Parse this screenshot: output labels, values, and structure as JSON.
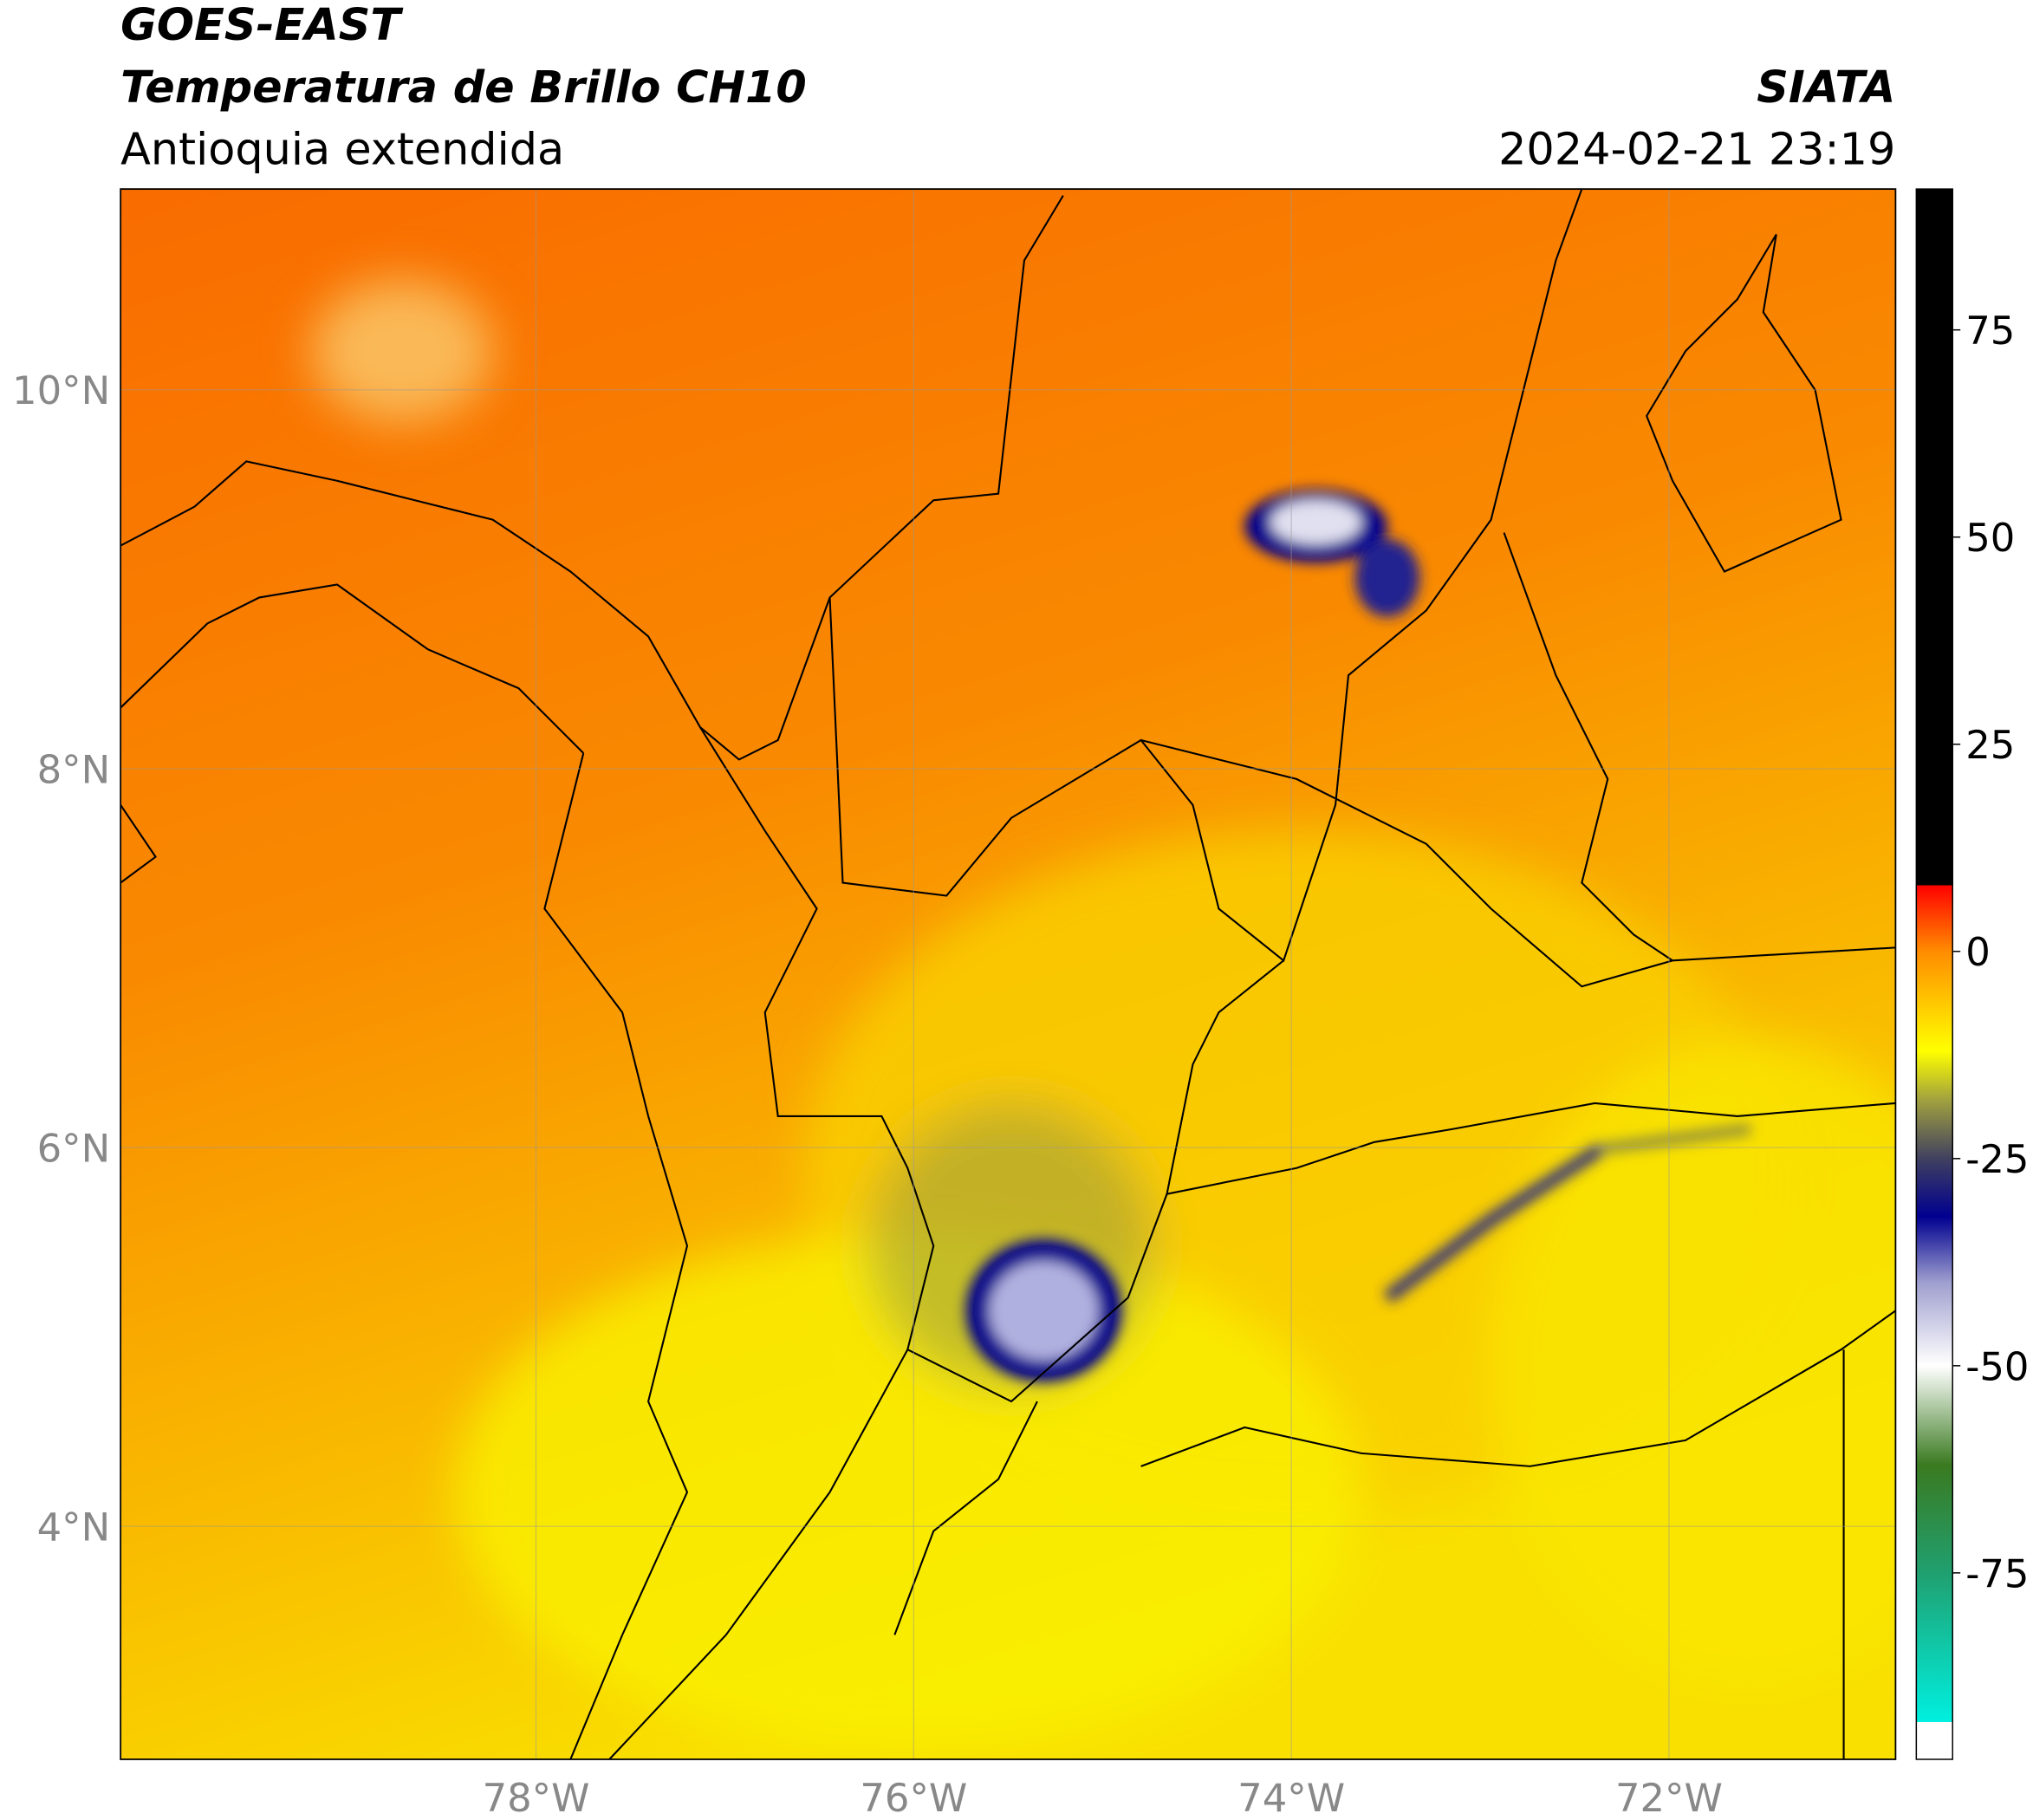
{
  "header": {
    "satellite": "GOES-EAST",
    "product": "Temperatura de Brillo CH10",
    "region": "Antioquia extendida",
    "agency": "SIATA",
    "datetime": "2024-02-21 23:19"
  },
  "map": {
    "lonlim": [
      -80.2,
      -70.8
    ],
    "latlim": [
      2.77,
      11.06
    ],
    "grid": true,
    "lat_ticks": [
      {
        "value": 10,
        "label": "10°N"
      },
      {
        "value": 8,
        "label": "8°N"
      },
      {
        "value": 6,
        "label": "6°N"
      },
      {
        "value": 4,
        "label": "4°N"
      }
    ],
    "lon_ticks": [
      {
        "value": -78,
        "label": "78°W"
      },
      {
        "value": -76,
        "label": "76°W"
      },
      {
        "value": -74,
        "label": "74°W"
      },
      {
        "value": -72,
        "label": "72°W"
      }
    ]
  },
  "colorbar": {
    "lim": [
      -97.5,
      92
    ],
    "ticks": [
      75,
      50,
      25,
      0,
      -25,
      -50,
      -75
    ],
    "colormap": [
      {
        "value": -97.5,
        "color": "#ffffff"
      },
      {
        "value": -93,
        "color": "#ffffff"
      },
      {
        "value": -93,
        "color": "#00f0e0"
      },
      {
        "value": -75,
        "color": "#20a070"
      },
      {
        "value": -62,
        "color": "#3a7a20"
      },
      {
        "value": -50,
        "color": "#ffffff"
      },
      {
        "value": -40,
        "color": "#a0a0d0"
      },
      {
        "value": -32,
        "color": "#000090"
      },
      {
        "value": -25,
        "color": "#404060"
      },
      {
        "value": -18,
        "color": "#a0a040"
      },
      {
        "value": -12,
        "color": "#ffff00"
      },
      {
        "value": 0,
        "color": "#ff8c00"
      },
      {
        "value": 8,
        "color": "#ff0000"
      },
      {
        "value": 8,
        "color": "#000000"
      },
      {
        "value": 92,
        "color": "#000000"
      }
    ]
  }
}
